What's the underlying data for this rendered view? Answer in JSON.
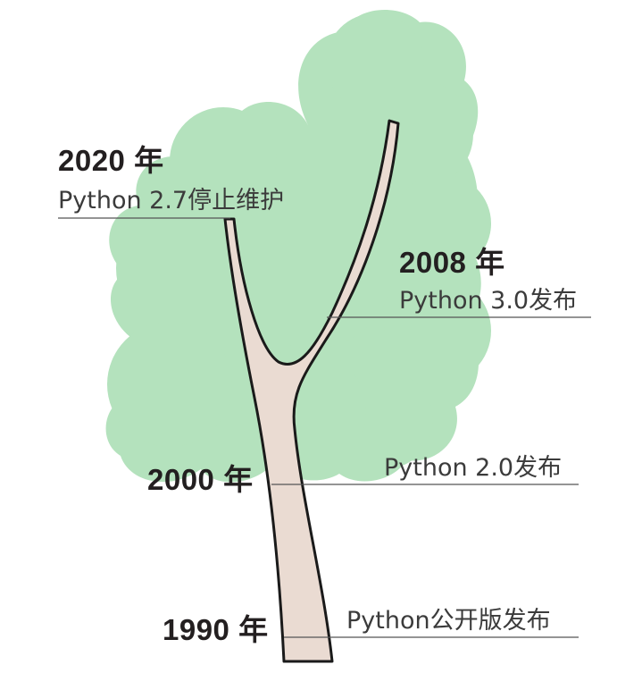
{
  "colors": {
    "canopy": "#b4e2bd",
    "trunk_fill": "#eadbd2",
    "outline": "#1a1a1a",
    "leader_line": "#555555",
    "text": "#231f20"
  },
  "milestones": [
    {
      "year": "2020 年",
      "event": "Python 2.7停止维护"
    },
    {
      "year": "2008 年",
      "event": "Python 3.0发布"
    },
    {
      "year": "2000 年",
      "event": "Python 2.0发布"
    },
    {
      "year": "1990 年",
      "event": "Python公开版发布"
    }
  ]
}
